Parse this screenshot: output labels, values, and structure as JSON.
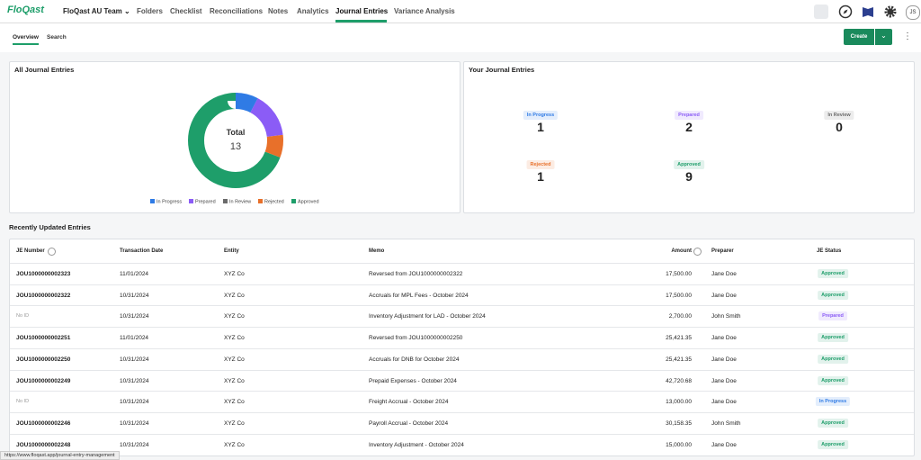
{
  "nav": {
    "logo": "FloQast",
    "team": "FloQast AU Team",
    "items": [
      "Folders",
      "Checklist",
      "Reconciliations",
      "Notes",
      "Analytics",
      "Journal Entries",
      "Variance Analysis"
    ],
    "user_initials": "JS"
  },
  "tabs": [
    "Overview",
    "Search"
  ],
  "create_button": "Create",
  "chart_data": {
    "type": "pie",
    "title": "All Journal Entries",
    "center_label": "Total",
    "total": 13,
    "categories": [
      "In Progress",
      "Prepared",
      "In Review",
      "Rejected",
      "Approved"
    ],
    "values": [
      1,
      2,
      0,
      1,
      9
    ],
    "colors": [
      "#2f7be5",
      "#8b5cf6",
      "#6b6b6b",
      "#e8702a",
      "#1e9e6a"
    ]
  },
  "your_entries": {
    "title": "Your Journal Entries",
    "counts": [
      1,
      2,
      0,
      1,
      9
    ]
  },
  "recent": {
    "title": "Recently Updated Entries",
    "columns": [
      "JE Number",
      "Transaction Date",
      "Entity",
      "Memo",
      "Amount",
      "Preparer",
      "JE Status"
    ],
    "rows": [
      [
        "JOU1000000002323",
        "11/01/2024",
        "XYZ Co",
        "Reversed from JOU1000000002322",
        "17,500.00",
        "Jane Doe",
        "Approved"
      ],
      [
        "JOU1000000002322",
        "10/31/2024",
        "XYZ Co",
        "Accruals for MPL Fees - October 2024",
        "17,500.00",
        "Jane Doe",
        "Approved"
      ],
      [
        "No ID",
        "10/31/2024",
        "XYZ Co",
        "Inventory Adjustment for LAD - October 2024",
        "2,700.00",
        "John Smith",
        "Prepared"
      ],
      [
        "JOU1000000002251",
        "11/01/2024",
        "XYZ Co",
        "Reversed from JOU1000000002250",
        "25,421.35",
        "Jane Doe",
        "Approved"
      ],
      [
        "JOU1000000002250",
        "10/31/2024",
        "XYZ Co",
        "Accruals for DNB for October 2024",
        "25,421.35",
        "Jane Doe",
        "Approved"
      ],
      [
        "JOU1000000002249",
        "10/31/2024",
        "XYZ Co",
        "Prepaid Expenses - October 2024",
        "42,720.68",
        "Jane Doe",
        "Approved"
      ],
      [
        "No ID",
        "10/31/2024",
        "XYZ Co",
        "Freight Accrual - October 2024",
        "13,000.00",
        "Jane Doe",
        "In Progress"
      ],
      [
        "JOU1000000002246",
        "10/31/2024",
        "XYZ Co",
        "Payroll Accrual - October 2024",
        "30,158.35",
        "John Smith",
        "Approved"
      ],
      [
        "JOU1000000002248",
        "10/31/2024",
        "XYZ Co",
        "Inventory Adjustment - October 2024",
        "15,000.00",
        "Jane Doe",
        "Approved"
      ]
    ]
  },
  "status_bar": "https://www.floqast.app/journal-entry-management"
}
